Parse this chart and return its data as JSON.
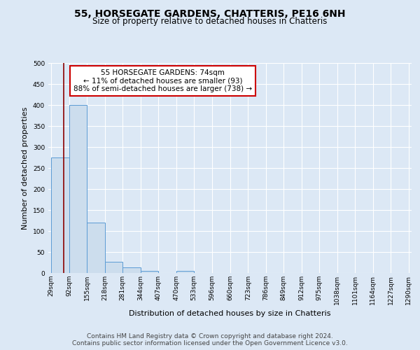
{
  "title": "55, HORSEGATE GARDENS, CHATTERIS, PE16 6NH",
  "subtitle": "Size of property relative to detached houses in Chatteris",
  "xlabel": "Distribution of detached houses by size in Chatteris",
  "ylabel": "Number of detached properties",
  "bin_edges": [
    29,
    92,
    155,
    218,
    281,
    344,
    407,
    470,
    533,
    596,
    660,
    723,
    786,
    849,
    912,
    975,
    1038,
    1101,
    1164,
    1227,
    1290
  ],
  "bar_heights": [
    275,
    400,
    120,
    27,
    14,
    5,
    0,
    5,
    0,
    0,
    0,
    0,
    0,
    0,
    0,
    0,
    0,
    0,
    0,
    0
  ],
  "bar_color": "#ccdded",
  "bar_edge_color": "#5b9bd5",
  "red_line_x": 74,
  "red_line_color": "#8b0000",
  "ylim": [
    0,
    500
  ],
  "yticks": [
    0,
    50,
    100,
    150,
    200,
    250,
    300,
    350,
    400,
    450,
    500
  ],
  "annotation_text": "55 HORSEGATE GARDENS: 74sqm\n← 11% of detached houses are smaller (93)\n88% of semi-detached houses are larger (738) →",
  "annotation_box_color": "#ffffff",
  "annotation_border_color": "#cc0000",
  "footer_line1": "Contains HM Land Registry data © Crown copyright and database right 2024.",
  "footer_line2": "Contains public sector information licensed under the Open Government Licence v3.0.",
  "background_color": "#dce8f5",
  "plot_bg_color": "#dce8f5",
  "title_fontsize": 10,
  "subtitle_fontsize": 8.5,
  "tick_label_fontsize": 6.5,
  "ylabel_fontsize": 8,
  "xlabel_fontsize": 8,
  "annotation_fontsize": 7.5,
  "footer_fontsize": 6.5
}
